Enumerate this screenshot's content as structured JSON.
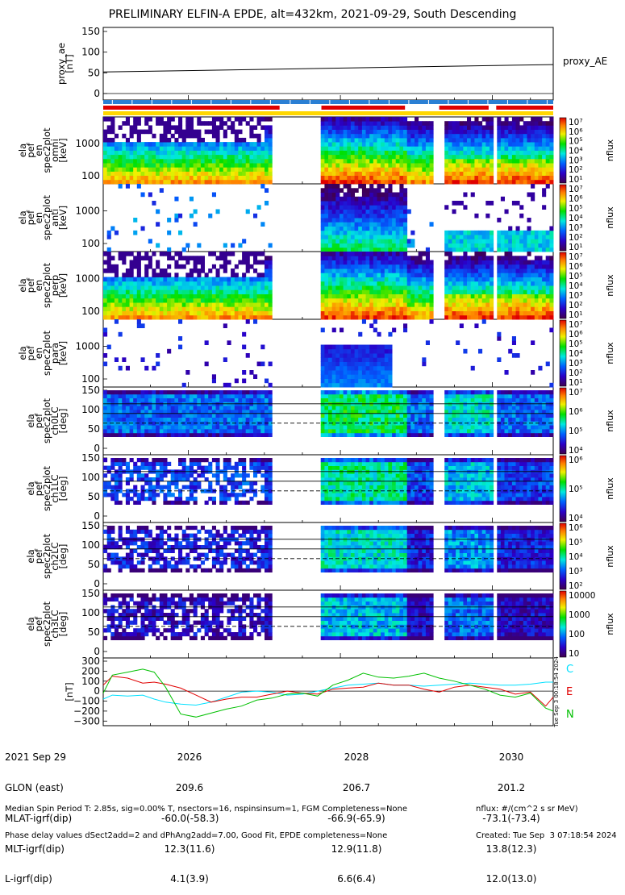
{
  "title": "PRELIMINARY ELFIN-A EPDE, alt=432km, 2021-09-29, South Descending",
  "colors": {
    "accent_red": "#e00000",
    "accent_blue": "#2a7fd4",
    "accent_yellow": "#ffd700",
    "c_green": "#00c000",
    "c_cyan": "#00e0ff"
  },
  "panels": [
    {
      "id": "proxy_ae",
      "ylabel": [
        "proxy_ae",
        "[nT]"
      ],
      "yticks": [
        "150",
        "100",
        "50",
        "0"
      ],
      "right_label": "proxy_AE"
    },
    {
      "id": "spec_1",
      "ylabel": [
        "ela",
        "pef",
        "en",
        "spec2plot",
        "omni",
        "[keV]"
      ],
      "yticks": [
        "1000",
        "100"
      ],
      "colorbar_ticks": [
        "10⁷",
        "10⁶",
        "10⁵",
        "10⁴",
        "10³",
        "10²",
        "10¹"
      ],
      "colorbar_label": "nflux"
    },
    {
      "id": "spec_2",
      "ylabel": [
        "ela",
        "pef",
        "en",
        "spec2plot",
        "anti",
        "[keV]"
      ],
      "yticks": [
        "1000",
        "100"
      ],
      "colorbar_ticks": [
        "10⁷",
        "10⁶",
        "10⁵",
        "10⁴",
        "10³",
        "10²",
        "10¹"
      ],
      "colorbar_label": "nflux"
    },
    {
      "id": "spec_3",
      "ylabel": [
        "ela",
        "pef",
        "en",
        "spec2plot",
        "perp",
        "[keV]"
      ],
      "yticks": [
        "1000",
        "100"
      ],
      "colorbar_ticks": [
        "10⁷",
        "10⁶",
        "10⁵",
        "10⁴",
        "10³",
        "10²",
        "10¹"
      ],
      "colorbar_label": "nflux"
    },
    {
      "id": "spec_4",
      "ylabel": [
        "ela",
        "pef",
        "en",
        "spec2plot",
        "para",
        "[keV]"
      ],
      "yticks": [
        "1000",
        "100"
      ],
      "colorbar_ticks": [
        "10⁷",
        "10⁶",
        "10⁵",
        "10⁴",
        "10³",
        "10²",
        "10¹"
      ],
      "colorbar_label": "nflux"
    },
    {
      "id": "pa_0",
      "ylabel": [
        "ela",
        "pef",
        "spec2plot",
        "ch0LC",
        "[deg]"
      ],
      "yticks": [
        "150",
        "100",
        "50",
        "0"
      ],
      "colorbar_ticks": [
        "10⁷",
        "10⁶",
        "10⁵",
        "10⁴"
      ],
      "colorbar_label": "nflux"
    },
    {
      "id": "pa_1",
      "ylabel": [
        "ela",
        "pef",
        "spec2plot",
        "ch1LC",
        "[deg]"
      ],
      "yticks": [
        "150",
        "100",
        "50",
        "0"
      ],
      "colorbar_ticks": [
        "10⁶",
        "10⁵",
        "10⁴"
      ],
      "colorbar_label": "nflux"
    },
    {
      "id": "pa_2",
      "ylabel": [
        "ela",
        "pef",
        "spec2plot",
        "ch2LC",
        "[deg]"
      ],
      "yticks": [
        "150",
        "100",
        "50",
        "0"
      ],
      "colorbar_ticks": [
        "10⁶",
        "10⁵",
        "10⁴",
        "10³",
        "10²"
      ],
      "colorbar_label": "nflux"
    },
    {
      "id": "pa_3",
      "ylabel": [
        "ela",
        "pef",
        "spec2plot",
        "ch3LC",
        "[deg]"
      ],
      "yticks": [
        "150",
        "100",
        "50",
        "0"
      ],
      "colorbar_ticks": [
        "10000",
        "1000",
        "100",
        "10"
      ],
      "colorbar_label": "nflux"
    },
    {
      "id": "mag",
      "ylabel": [
        "[nT]"
      ],
      "yticks": [
        "300",
        "200",
        "100",
        "0",
        "−100",
        "−200",
        "−300"
      ]
    }
  ],
  "mag_legend": [
    "C",
    "E",
    "N"
  ],
  "ephemeris": {
    "row_labels": [
      "2021 Sep 29",
      "GLON (east)",
      "MLAT-igrf(dip)",
      "MLT-igrf(dip)",
      "L-igrf(dip)"
    ],
    "columns": [
      {
        "time": "2026",
        "values": [
          "209.6",
          "-60.0(-58.3)",
          "12.3(11.6)",
          "4.1(3.9)"
        ]
      },
      {
        "time": "2028",
        "values": [
          "206.7",
          "-66.9(-65.9)",
          "12.9(11.8)",
          "6.6(6.4)"
        ]
      },
      {
        "time": "2030",
        "values": [
          "201.2",
          "-73.1(-73.4)",
          "13.8(12.3)",
          "12.0(13.0)"
        ]
      }
    ]
  },
  "footer_left": [
    "Median Spin Period T: 2.85s, sig=0.00% T, nsectors=16, nspinsinsum=1, FGM Completeness=None",
    "Phase delay values dSect2add=2 and dPhAng2add=7.00, Good Fit, EPDE completeness=None"
  ],
  "footer_right": [
    "nflux: #/(cm^2 s sr MeV)",
    "Created: Tue Sep  3 07:18:54 2024"
  ],
  "side_stamp": "Tue Sep  3 00:18:54 2024",
  "chart_data": {
    "type": "line",
    "title": "PRELIMINARY ELFIN-A EPDE, alt=432km, 2021-09-29, South Descending",
    "x": [
      "2025.0",
      "2026",
      "2027",
      "2028",
      "2029",
      "2030",
      "2030.8"
    ],
    "proxy_ae": {
      "name": "proxy_AE",
      "ylabel": "proxy_ae [nT]",
      "ylim": [
        0,
        150
      ],
      "x": [
        2024.88,
        2030.8
      ],
      "y": [
        52,
        70
      ]
    },
    "mag": {
      "ylabel": "[nT]",
      "ylim": [
        -330,
        300
      ],
      "x": [
        2024.88,
        2025.0,
        2025.2,
        2025.4,
        2025.55,
        2025.7,
        2025.9,
        2026.1,
        2026.3,
        2026.5,
        2026.7,
        2026.9,
        2027.1,
        2027.3,
        2027.5,
        2027.7,
        2027.9,
        2028.1,
        2028.3,
        2028.5,
        2028.7,
        2028.9,
        2029.1,
        2029.3,
        2029.5,
        2029.7,
        2029.9,
        2030.1,
        2030.3,
        2030.5,
        2030.7,
        2030.8
      ],
      "series": [
        {
          "name": "C",
          "color": "#00e0ff",
          "values": [
            -80,
            -40,
            -50,
            -40,
            -80,
            -110,
            -130,
            -140,
            -110,
            -60,
            -10,
            0,
            -10,
            -40,
            -30,
            0,
            30,
            60,
            70,
            80,
            60,
            60,
            50,
            60,
            70,
            80,
            70,
            60,
            60,
            70,
            90,
            90
          ]
        },
        {
          "name": "E",
          "color": "#e00000",
          "values": [
            60,
            150,
            130,
            80,
            90,
            70,
            30,
            -40,
            -110,
            -80,
            -60,
            -60,
            -30,
            0,
            -20,
            -30,
            20,
            30,
            40,
            80,
            60,
            60,
            20,
            -10,
            40,
            60,
            40,
            20,
            -30,
            -10,
            -150,
            -60
          ]
        },
        {
          "name": "N",
          "color": "#00c000",
          "values": [
            -20,
            160,
            190,
            220,
            190,
            40,
            -230,
            -260,
            -220,
            -180,
            -150,
            -90,
            -70,
            -30,
            -20,
            -50,
            60,
            110,
            180,
            140,
            130,
            150,
            180,
            130,
            100,
            60,
            20,
            -40,
            -60,
            -20,
            -170,
            -200
          ]
        }
      ]
    }
  }
}
